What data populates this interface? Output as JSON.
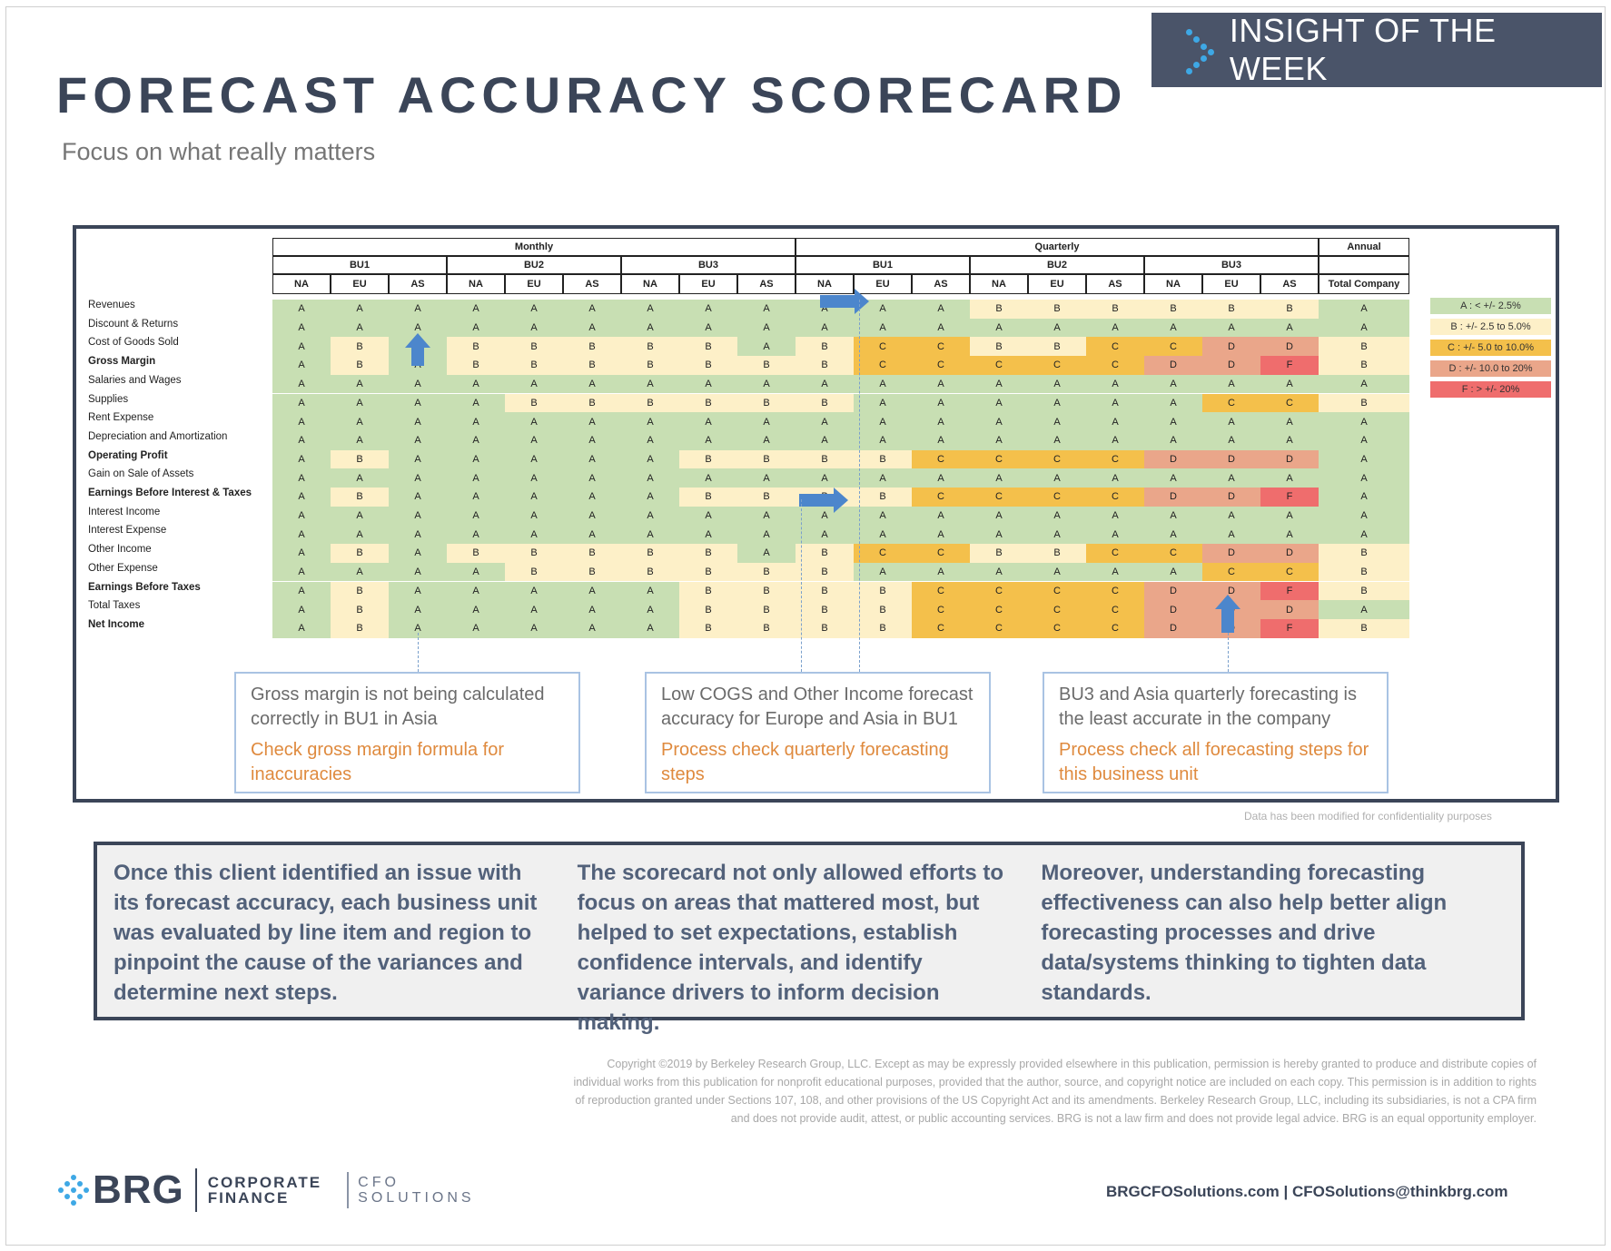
{
  "header": {
    "badge_text": "INSIGHT OF THE WEEK",
    "title": "FORECAST ACCURACY SCORECARD",
    "subtitle": "Focus on what really matters"
  },
  "scorecard": {
    "periods": [
      "Monthly",
      "Quarterly",
      "Annual"
    ],
    "business_units": [
      "BU1",
      "BU2",
      "BU3"
    ],
    "regions": [
      "NA",
      "EU",
      "AS"
    ],
    "total_label": "Total Company",
    "rows": [
      {
        "label": "Revenues",
        "bold": false,
        "grades": "AAAAAAAAAAAABBBBBBA"
      },
      {
        "label": "Discount & Returns",
        "bold": false,
        "grades": "AAAAAAAAAAAAAAAAAAA"
      },
      {
        "label": "Cost of Goods Sold",
        "bold": false,
        "grades": "ABABBBBBABCCBBCCDDB"
      },
      {
        "label": "Gross Margin",
        "bold": true,
        "grades": "ABABBBBBBBCCCCCDDFB"
      },
      {
        "label": "Salaries and Wages",
        "bold": false,
        "grades": "AAAAAAAAAAAAAAAAAAA"
      },
      {
        "label": "Supplies",
        "bold": false,
        "grades": "AAAABBBBBBAAAAAACCB"
      },
      {
        "label": "Rent Expense",
        "bold": false,
        "grades": "AAAAAAAAAAAAAAAAAAA"
      },
      {
        "label": "Depreciation and Amortization",
        "bold": false,
        "grades": "AAAAAAAAAAAAAAAAAAA"
      },
      {
        "label": "Operating Profit",
        "bold": true,
        "grades": "ABAAAAABBBBCCCCDDDA"
      },
      {
        "label": "Gain on Sale of Assets",
        "bold": false,
        "grades": "AAAAAAAAAAAAAAAAAAA"
      },
      {
        "label": "Earnings Before Interest & Taxes",
        "bold": true,
        "grades": "ABAAAAABBBBCCCCDDFA"
      },
      {
        "label": "Interest Income",
        "bold": false,
        "grades": "AAAAAAAAAAAAAAAAAAA"
      },
      {
        "label": "Interest Expense",
        "bold": false,
        "grades": "AAAAAAAAAAAAAAAAAAA"
      },
      {
        "label": "Other Income",
        "bold": false,
        "grades": "ABABBBBBABCCBBCCDDB"
      },
      {
        "label": "Other Expense",
        "bold": false,
        "grades": "AAAABBBBBBAAAAAACCB"
      },
      {
        "label": "Earnings Before Taxes",
        "bold": true,
        "grades": "ABAAAAABBBBCCCCDDFB"
      },
      {
        "label": "Total Taxes",
        "bold": false,
        "grades": "ABAAAAABBBBCCCCDDDA"
      },
      {
        "label": "Net Income",
        "bold": true,
        "grades": "ABAAAAABBBBCCCCDDFB"
      }
    ],
    "legend": [
      {
        "text": "A : < +/- 2.5%",
        "color": "#c8dfb3"
      },
      {
        "text": "B : +/- 2.5 to 5.0%",
        "color": "#fdf0c8"
      },
      {
        "text": "C : +/- 5.0 to 10.0%",
        "color": "#f4c04b"
      },
      {
        "text": "D : +/- 10.0 to 20%",
        "color": "#eaa68a"
      },
      {
        "text": "F : > +/- 20%",
        "color": "#ef6d6d"
      }
    ]
  },
  "callouts": [
    {
      "finding": "Gross margin is not being calculated correctly in BU1 in Asia",
      "action": "Check gross margin formula for inaccuracies"
    },
    {
      "finding": "Low COGS and Other Income forecast accuracy for Europe and Asia in BU1",
      "action": "Process check quarterly forecasting steps"
    },
    {
      "finding": "BU3 and Asia quarterly forecasting is the least accurate in the company",
      "action": "Process check all forecasting steps for this business unit"
    }
  ],
  "confidentiality_note": "Data has been modified for confidentiality purposes",
  "summary": [
    "Once this client identified an issue with its forecast accuracy, each business unit was evaluated by line item and region to pinpoint the cause of the variances and determine next steps.",
    "The scorecard not only allowed efforts to focus on areas that mattered most, but helped to set expectations, establish confidence intervals, and identify variance drivers to inform decision making.",
    "Moreover, understanding forecasting effectiveness can also help better align forecasting processes and drive data/systems thinking to tighten data standards."
  ],
  "legal": "Copyright ©2019 by Berkeley Research Group, LLC. Except as may be expressly provided elsewhere in this publication, permission is hereby granted to produce and distribute copies of individual works from this publication for nonprofit educational purposes, provided that the author, source, and copyright notice are included on each copy. This permission is in addition to rights of reproduction granted under Sections 107, 108, and other provisions of the US Copyright Act and its amendments. Berkeley Research Group, LLC, including its subsidiaries, is not a CPA firm and does not provide audit, attest, or public accounting services. BRG is not a law firm and does not provide legal advice. BRG is an equal opportunity employer.",
  "footer": {
    "logo_brg": "BRG",
    "logo_cf_line1": "CORPORATE",
    "logo_cf_line2": "FINANCE",
    "logo_cfo_line1": "CFO",
    "logo_cfo_line2": "SOLUTIONS",
    "contact": "BRGCFOSolutions.com  |  CFOSolutions@thinkbrg.com"
  },
  "colors": {
    "navy": "#3b4558",
    "grade_A": "#c8dfb3",
    "grade_B": "#fdf0c8",
    "grade_C": "#f4c04b",
    "grade_D": "#eaa68a",
    "grade_F": "#ef6d6d",
    "arrow": "#4c86cc",
    "action_text": "#df8a3e"
  }
}
